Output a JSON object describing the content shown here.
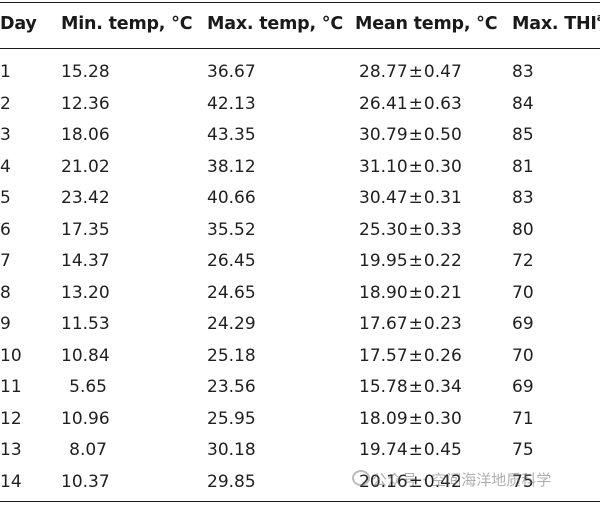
{
  "table": {
    "headers": {
      "day": "Day",
      "min": "Min. temp, °C",
      "max": "Max. temp, °C",
      "mean": "Mean temp, °C",
      "thi": "Max. THI",
      "thi_sup": "a"
    },
    "rows": [
      {
        "day": "1",
        "min": "15.28",
        "max": "36.67",
        "mean_val": "28.77",
        "pm": "±",
        "mean_sd": "0.47",
        "thi": "83"
      },
      {
        "day": "2",
        "min": "12.36",
        "max": "42.13",
        "mean_val": "26.41",
        "pm": "±",
        "mean_sd": "0.63",
        "thi": "84"
      },
      {
        "day": "3",
        "min": "18.06",
        "max": "43.35",
        "mean_val": "30.79",
        "pm": "±",
        "mean_sd": "0.50",
        "thi": "85"
      },
      {
        "day": "4",
        "min": "21.02",
        "max": "38.12",
        "mean_val": "31.10",
        "pm": "±",
        "mean_sd": "0.30",
        "thi": "81"
      },
      {
        "day": "5",
        "min": "23.42",
        "max": "40.66",
        "mean_val": "30.47",
        "pm": "±",
        "mean_sd": "0.31",
        "thi": "83"
      },
      {
        "day": "6",
        "min": "17.35",
        "max": "35.52",
        "mean_val": "25.30",
        "pm": "±",
        "mean_sd": "0.33",
        "thi": "80"
      },
      {
        "day": "7",
        "min": "14.37",
        "max": "26.45",
        "mean_val": "19.95",
        "pm": "±",
        "mean_sd": "0.22",
        "thi": "72"
      },
      {
        "day": "8",
        "min": "13.20",
        "max": "24.65",
        "mean_val": "18.90",
        "pm": "±",
        "mean_sd": "0.21",
        "thi": "70"
      },
      {
        "day": "9",
        "min": "11.53",
        "max": "24.29",
        "mean_val": "17.67",
        "pm": "±",
        "mean_sd": "0.23",
        "thi": "69"
      },
      {
        "day": "10",
        "min": "10.84",
        "max": "25.18",
        "mean_val": "17.57",
        "pm": "±",
        "mean_sd": "0.26",
        "thi": "70"
      },
      {
        "day": "11",
        "min": "5.65",
        "max": "23.56",
        "mean_val": "15.78",
        "pm": "±",
        "mean_sd": "0.34",
        "thi": "69"
      },
      {
        "day": "12",
        "min": "10.96",
        "max": "25.95",
        "mean_val": "18.09",
        "pm": "±",
        "mean_sd": "0.30",
        "thi": "71"
      },
      {
        "day": "13",
        "min": "8.07",
        "max": "30.18",
        "mean_val": "19.74",
        "pm": "±",
        "mean_sd": "0.45",
        "thi": "75"
      },
      {
        "day": "14",
        "min": "10.37",
        "max": "29.85",
        "mean_val": "20.16",
        "pm": "±",
        "mean_sd": "0.42",
        "thi": "75"
      }
    ]
  },
  "watermark": {
    "text": "公众号 · 空间海洋地质科学"
  }
}
